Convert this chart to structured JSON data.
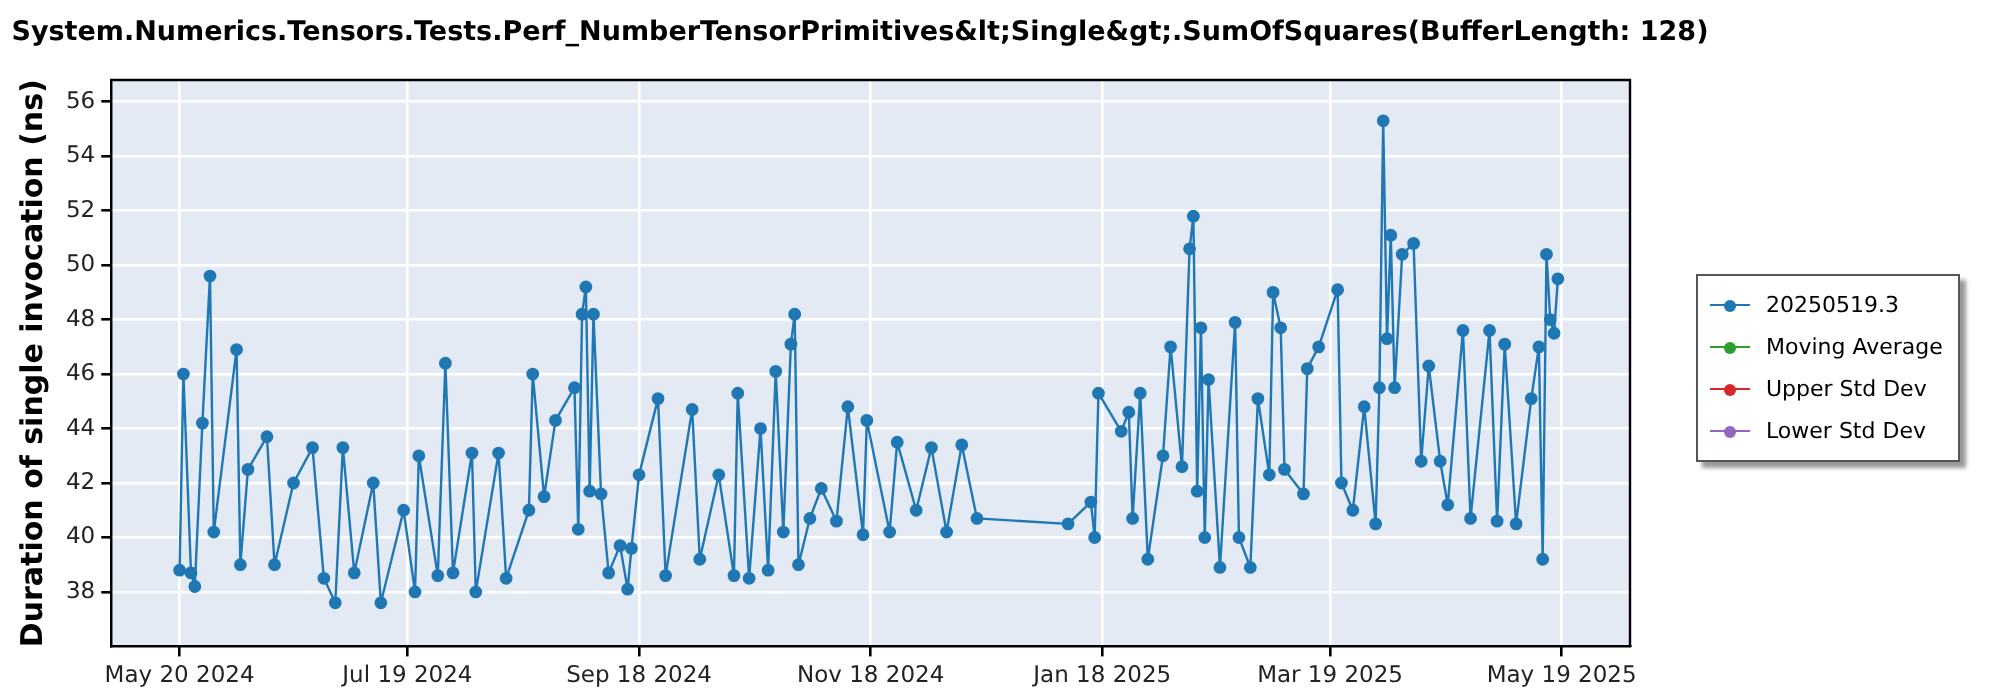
{
  "chart_data": {
    "type": "line",
    "title": "System.Numerics.Tensors.Tests.Perf_NumberTensorPrimitives&lt;Single&gt;.SumOfSquares(BufferLength: 128)",
    "ylabel": "Duration of single invocation (ns)",
    "xlim": [
      "2024-05-02",
      "2025-06-06"
    ],
    "xticks": [
      {
        "value": "2024-05-20",
        "label": "May 20 2024"
      },
      {
        "value": "2024-07-19",
        "label": "Jul 19 2024"
      },
      {
        "value": "2024-09-18",
        "label": "Sep 18 2024"
      },
      {
        "value": "2024-11-18",
        "label": "Nov 18 2024"
      },
      {
        "value": "2025-01-18",
        "label": "Jan 18 2025"
      },
      {
        "value": "2025-03-19",
        "label": "Mar 19 2025"
      },
      {
        "value": "2025-05-19",
        "label": "May 19 2025"
      }
    ],
    "ylim": [
      36,
      56.8
    ],
    "yticks": [
      38,
      40,
      42,
      44,
      46,
      48,
      50,
      52,
      54,
      56
    ],
    "grid": true,
    "legend": "right",
    "marker": "circle",
    "series": [
      {
        "name": "20250519.3",
        "color": "#1f77b4",
        "x": [
          "2024-05-20",
          "2024-05-21",
          "2024-05-23",
          "2024-05-24",
          "2024-05-26",
          "2024-05-28",
          "2024-05-29",
          "2024-06-04",
          "2024-06-05",
          "2024-06-07",
          "2024-06-12",
          "2024-06-14",
          "2024-06-19",
          "2024-06-24",
          "2024-06-27",
          "2024-06-30",
          "2024-07-02",
          "2024-07-05",
          "2024-07-10",
          "2024-07-12",
          "2024-07-18",
          "2024-07-21",
          "2024-07-22",
          "2024-07-27",
          "2024-07-29",
          "2024-07-31",
          "2024-08-05",
          "2024-08-06",
          "2024-08-12",
          "2024-08-14",
          "2024-08-20",
          "2024-08-21",
          "2024-08-24",
          "2024-08-27",
          "2024-09-01",
          "2024-09-02",
          "2024-09-03",
          "2024-09-04",
          "2024-09-05",
          "2024-09-06",
          "2024-09-08",
          "2024-09-10",
          "2024-09-13",
          "2024-09-15",
          "2024-09-16",
          "2024-09-18",
          "2024-09-23",
          "2024-09-25",
          "2024-10-02",
          "2024-10-04",
          "2024-10-09",
          "2024-10-13",
          "2024-10-14",
          "2024-10-17",
          "2024-10-20",
          "2024-10-22",
          "2024-10-24",
          "2024-10-26",
          "2024-10-28",
          "2024-10-29",
          "2024-10-30",
          "2024-11-02",
          "2024-11-05",
          "2024-11-09",
          "2024-11-12",
          "2024-11-16",
          "2024-11-17",
          "2024-11-23",
          "2024-11-25",
          "2024-11-30",
          "2024-12-04",
          "2024-12-08",
          "2024-12-12",
          "2024-12-16",
          "2025-01-09",
          "2025-01-15",
          "2025-01-16",
          "2025-01-17",
          "2025-01-23",
          "2025-01-25",
          "2025-01-26",
          "2025-01-28",
          "2025-01-30",
          "2025-02-03",
          "2025-02-05",
          "2025-02-08",
          "2025-02-10",
          "2025-02-11",
          "2025-02-12",
          "2025-02-13",
          "2025-02-14",
          "2025-02-15",
          "2025-02-18",
          "2025-02-22",
          "2025-02-23",
          "2025-02-26",
          "2025-02-28",
          "2025-03-03",
          "2025-03-04",
          "2025-03-06",
          "2025-03-07",
          "2025-03-12",
          "2025-03-13",
          "2025-03-16",
          "2025-03-21",
          "2025-03-22",
          "2025-03-25",
          "2025-03-28",
          "2025-03-31",
          "2025-04-01",
          "2025-04-02",
          "2025-04-03",
          "2025-04-04",
          "2025-04-05",
          "2025-04-07",
          "2025-04-10",
          "2025-04-12",
          "2025-04-14",
          "2025-04-17",
          "2025-04-19",
          "2025-04-23",
          "2025-04-25",
          "2025-04-30",
          "2025-05-02",
          "2025-05-04",
          "2025-05-07",
          "2025-05-11",
          "2025-05-13",
          "2025-05-14",
          "2025-05-15",
          "2025-05-16",
          "2025-05-17",
          "2025-05-18"
        ],
        "values": [
          38.8,
          46.0,
          38.7,
          38.2,
          44.2,
          49.6,
          40.2,
          46.9,
          39.0,
          42.5,
          43.7,
          39.0,
          42.0,
          43.3,
          38.5,
          37.6,
          43.3,
          38.7,
          42.0,
          37.6,
          41.0,
          38.0,
          43.0,
          38.6,
          46.4,
          38.7,
          43.1,
          38.0,
          43.1,
          38.5,
          41.0,
          46.0,
          41.5,
          44.3,
          45.5,
          40.3,
          48.2,
          49.2,
          41.7,
          48.2,
          41.6,
          38.7,
          39.7,
          38.1,
          39.6,
          42.3,
          45.1,
          38.6,
          44.7,
          39.2,
          42.3,
          38.6,
          45.3,
          38.5,
          44.0,
          38.8,
          46.1,
          40.2,
          47.1,
          48.2,
          39.0,
          40.7,
          41.8,
          40.6,
          44.8,
          40.1,
          44.3,
          40.2,
          43.5,
          41.0,
          43.3,
          40.2,
          43.4,
          40.7,
          40.5,
          41.3,
          40.0,
          45.3,
          43.9,
          44.6,
          40.7,
          45.3,
          39.2,
          43.0,
          47.0,
          42.6,
          50.6,
          51.8,
          41.7,
          47.7,
          40.0,
          45.8,
          38.9,
          47.9,
          40.0,
          38.9,
          45.1,
          42.3,
          49.0,
          47.7,
          42.5,
          41.6,
          46.2,
          47.0,
          49.1,
          42.0,
          41.0,
          44.8,
          40.5,
          45.5,
          55.3,
          47.3,
          51.1,
          45.5,
          50.4,
          50.8,
          42.8,
          46.3,
          42.8,
          41.2,
          47.6,
          40.7,
          47.6,
          40.6,
          47.1,
          40.5,
          45.1,
          47.0,
          39.2,
          50.4,
          48.0,
          47.5,
          49.5
        ]
      },
      {
        "name": "Moving Average",
        "color": "#2ca02c"
      },
      {
        "name": "Upper Std Dev",
        "color": "#d62728"
      },
      {
        "name": "Lower Std Dev",
        "color": "#9467bd"
      }
    ]
  }
}
